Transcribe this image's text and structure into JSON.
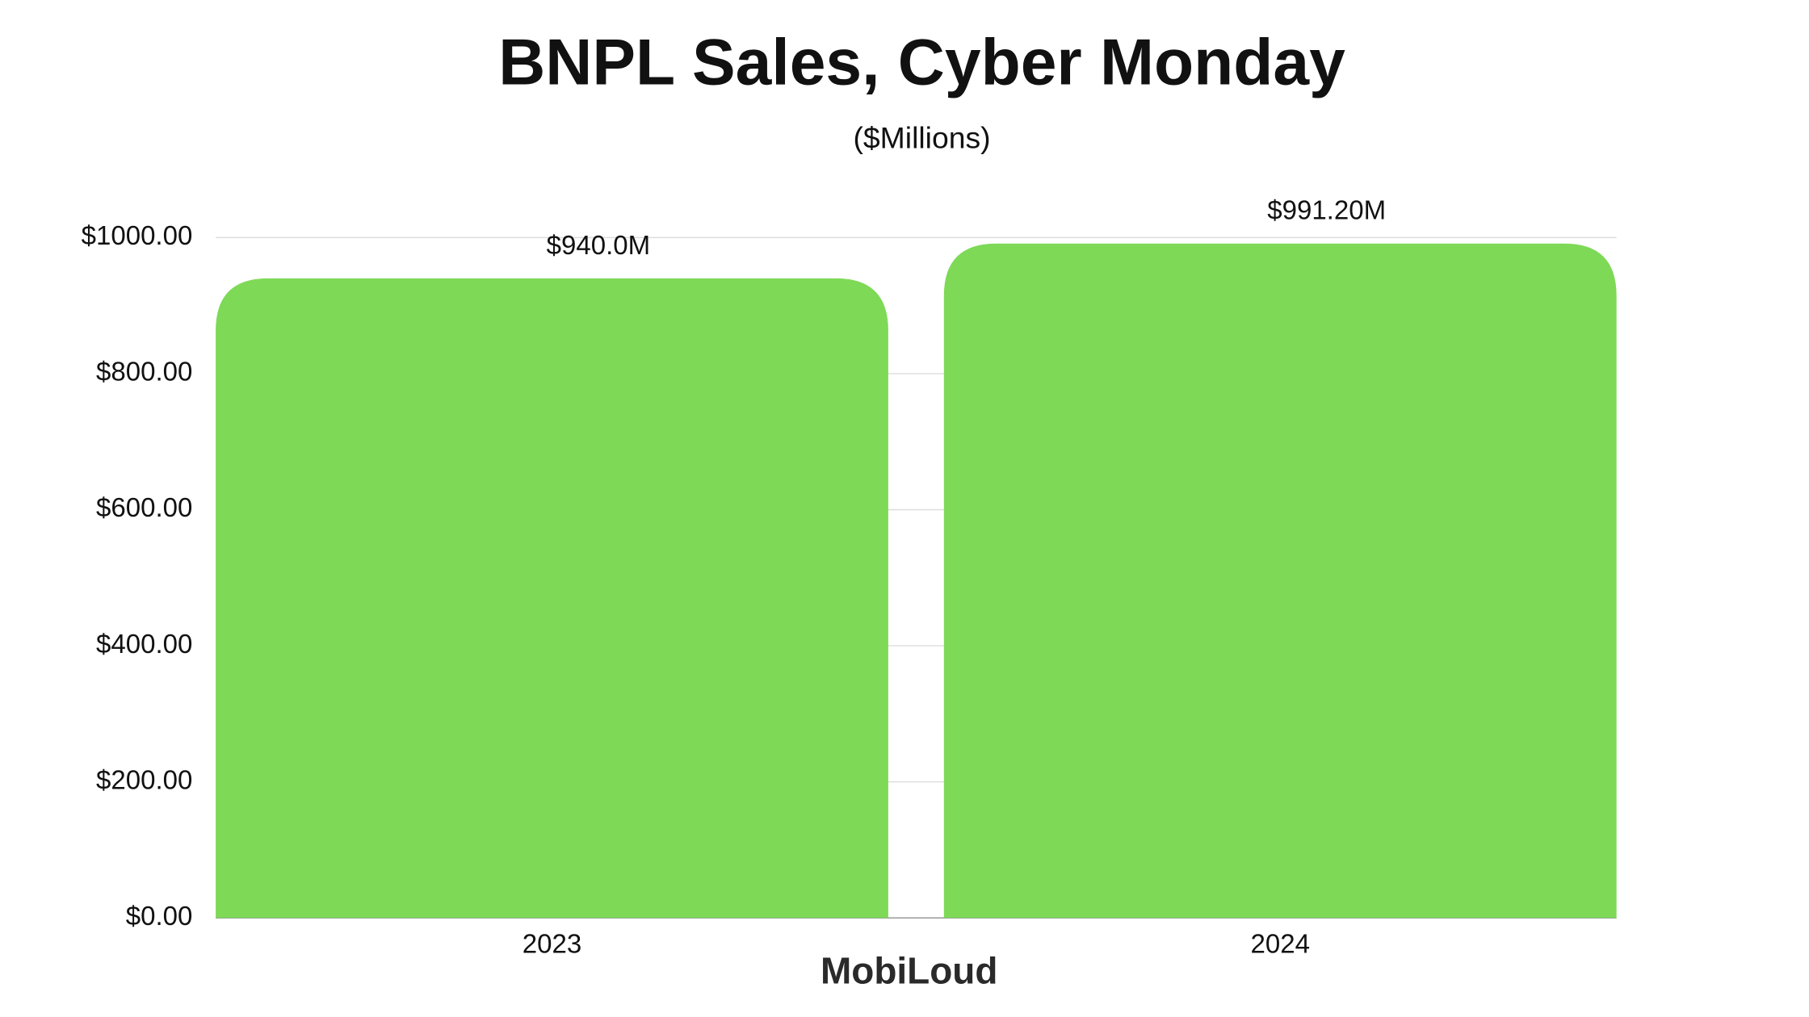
{
  "chart_data": {
    "type": "bar",
    "title": "BNPL Sales, Cyber Monday",
    "subtitle": "($Millions)",
    "categories": [
      "2023",
      "2024"
    ],
    "values": [
      940.0,
      991.2
    ],
    "value_labels": [
      "$940.0M",
      "$991.20M"
    ],
    "color": "#7ed957",
    "ylim": [
      0,
      1000
    ],
    "yticks": [
      {
        "value": 0,
        "label": "$0.00"
      },
      {
        "value": 200,
        "label": "$200.00"
      },
      {
        "value": 400,
        "label": "$400.00"
      },
      {
        "value": 600,
        "label": "$600.00"
      },
      {
        "value": 800,
        "label": "$800.00"
      },
      {
        "value": 1000,
        "label": "$1000.00"
      }
    ],
    "grid": true,
    "watermark": "MobiLoud"
  }
}
